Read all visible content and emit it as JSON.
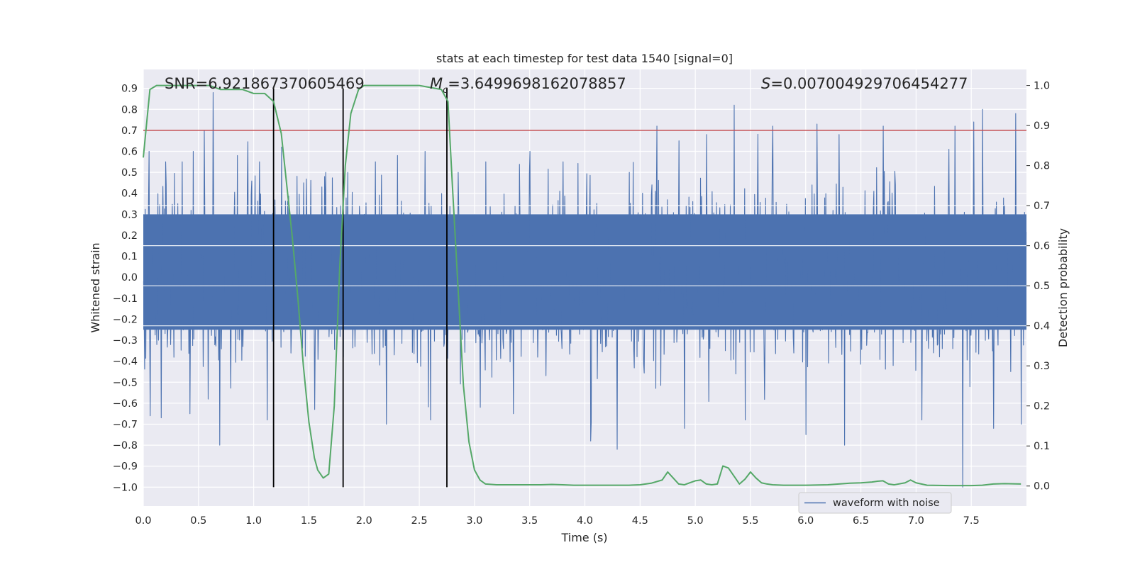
{
  "chart_data": {
    "type": "line",
    "title": "stats at each timestep for test data 1540 [signal=0]",
    "xlabel": "Time (s)",
    "ylabel_left": "Whitened strain",
    "ylabel_right": "Detection probability",
    "xlim": [
      0,
      8
    ],
    "ylim_left": [
      -1.09,
      0.99
    ],
    "ylim_right": [
      -0.05,
      1.04
    ],
    "x_ticks": [
      "0.0",
      "0.5",
      "1.0",
      "1.5",
      "2.0",
      "2.5",
      "3.0",
      "3.5",
      "4.0",
      "4.5",
      "5.0",
      "5.5",
      "6.0",
      "6.5",
      "7.0",
      "7.5"
    ],
    "y_ticks_left": [
      "0.9",
      "0.8",
      "0.7",
      "0.6",
      "0.5",
      "0.4",
      "0.3",
      "0.2",
      "0.1",
      "0.0",
      "−0.1",
      "−0.2",
      "−0.3",
      "−0.4",
      "−0.5",
      "−0.6",
      "−0.7",
      "−0.8",
      "−0.9",
      "−1.0"
    ],
    "y_ticks_right": [
      "1.0",
      "0.9",
      "0.8",
      "0.7",
      "0.6",
      "0.5",
      "0.4",
      "0.3",
      "0.2",
      "0.1",
      "0.0"
    ],
    "grid": true,
    "legend_position": "lower-right",
    "annotations": {
      "snr": "SNR=6.921867370605469",
      "mc_symbol": "M",
      "mc_sub": "c",
      "mc_value": "=3.6499698162078857",
      "s_symbol": "S",
      "s_value": "=0.007004929706454277"
    },
    "threshold_line": {
      "axis": "left",
      "y": 0.7,
      "color": "#c44e52"
    },
    "vertical_markers_x": [
      1.18,
      1.81,
      2.75
    ],
    "series": [
      {
        "name": "waveform with noise",
        "axis": "left",
        "color": "#4c72b0",
        "description_peaks": {
          "upper_spikes": [
            [
              0.05,
              0.6
            ],
            [
              0.2,
              0.55
            ],
            [
              0.35,
              0.55
            ],
            [
              0.45,
              0.6
            ],
            [
              0.55,
              0.7
            ],
            [
              0.63,
              0.88
            ],
            [
              0.85,
              0.58
            ],
            [
              1.05,
              0.55
            ],
            [
              1.25,
              0.62
            ],
            [
              1.45,
              0.45
            ],
            [
              1.65,
              0.5
            ],
            [
              1.85,
              0.5
            ],
            [
              2.1,
              0.55
            ],
            [
              2.3,
              0.58
            ],
            [
              2.55,
              0.6
            ],
            [
              2.85,
              0.5
            ],
            [
              3.1,
              0.55
            ],
            [
              3.5,
              0.6
            ],
            [
              3.8,
              0.55
            ],
            [
              4.05,
              0.57
            ],
            [
              4.4,
              0.5
            ],
            [
              4.65,
              0.72
            ],
            [
              4.85,
              0.65
            ],
            [
              5.1,
              0.68
            ],
            [
              5.35,
              0.82
            ],
            [
              5.45,
              0.7
            ],
            [
              5.7,
              0.72
            ],
            [
              6.1,
              0.73
            ],
            [
              6.3,
              0.68
            ],
            [
              6.7,
              0.72
            ],
            [
              7.05,
              0.72
            ],
            [
              7.35,
              0.72
            ],
            [
              7.52,
              0.74
            ],
            [
              7.6,
              0.8
            ],
            [
              7.9,
              0.78
            ]
          ],
          "lower_spikes": [
            [
              0.06,
              -0.66
            ],
            [
              0.16,
              -0.67
            ],
            [
              0.42,
              -0.65
            ],
            [
              0.69,
              -0.8
            ],
            [
              1.12,
              -0.68
            ],
            [
              1.55,
              -0.63
            ],
            [
              2.2,
              -0.7
            ],
            [
              2.6,
              -0.68
            ],
            [
              3.05,
              -0.62
            ],
            [
              3.35,
              -0.65
            ],
            [
              4.05,
              -0.78
            ],
            [
              4.29,
              -0.82
            ],
            [
              4.9,
              -0.72
            ],
            [
              5.45,
              -0.68
            ],
            [
              6.0,
              -0.75
            ],
            [
              6.35,
              -0.8
            ],
            [
              7.05,
              -0.68
            ],
            [
              7.42,
              -1.0
            ],
            [
              7.7,
              -0.72
            ],
            [
              7.95,
              -0.7
            ]
          ]
        }
      },
      {
        "name": "",
        "axis": "right",
        "color": "#55a868",
        "x": [
          0.0,
          0.06,
          0.12,
          0.2,
          0.3,
          0.4,
          0.5,
          0.6,
          0.7,
          0.8,
          0.9,
          1.0,
          1.1,
          1.18,
          1.25,
          1.3,
          1.35,
          1.4,
          1.45,
          1.5,
          1.55,
          1.58,
          1.63,
          1.68,
          1.73,
          1.78,
          1.83,
          1.88,
          1.95,
          2.0,
          2.1,
          2.3,
          2.5,
          2.7,
          2.76,
          2.8,
          2.85,
          2.9,
          2.95,
          3.0,
          3.05,
          3.1,
          3.2,
          3.3,
          3.4,
          3.5,
          3.6,
          3.7,
          3.8,
          3.9,
          4.0,
          4.2,
          4.4,
          4.5,
          4.6,
          4.7,
          4.75,
          4.8,
          4.85,
          4.9,
          4.95,
          5.0,
          5.05,
          5.1,
          5.15,
          5.2,
          5.25,
          5.3,
          5.35,
          5.4,
          5.45,
          5.5,
          5.55,
          5.6,
          5.65,
          5.7,
          5.8,
          6.0,
          6.2,
          6.4,
          6.5,
          6.6,
          6.65,
          6.7,
          6.75,
          6.8,
          6.9,
          6.95,
          7.0,
          7.1,
          7.3,
          7.5,
          7.6,
          7.7,
          7.8,
          7.95
        ],
        "values": [
          0.82,
          0.99,
          1.0,
          1.0,
          1.0,
          1.0,
          1.0,
          1.0,
          0.99,
          0.99,
          0.99,
          0.98,
          0.98,
          0.96,
          0.88,
          0.75,
          0.62,
          0.47,
          0.3,
          0.16,
          0.07,
          0.04,
          0.02,
          0.03,
          0.2,
          0.55,
          0.8,
          0.93,
          0.99,
          1.0,
          1.0,
          1.0,
          1.0,
          0.99,
          0.96,
          0.75,
          0.5,
          0.25,
          0.11,
          0.04,
          0.015,
          0.005,
          0.003,
          0.003,
          0.003,
          0.003,
          0.003,
          0.004,
          0.003,
          0.002,
          0.002,
          0.002,
          0.002,
          0.003,
          0.007,
          0.015,
          0.035,
          0.02,
          0.005,
          0.003,
          0.008,
          0.013,
          0.015,
          0.005,
          0.003,
          0.005,
          0.05,
          0.045,
          0.025,
          0.005,
          0.017,
          0.035,
          0.02,
          0.008,
          0.005,
          0.003,
          0.002,
          0.002,
          0.003,
          0.007,
          0.008,
          0.01,
          0.012,
          0.013,
          0.005,
          0.003,
          0.008,
          0.015,
          0.008,
          0.002,
          0.001,
          0.001,
          0.002,
          0.005,
          0.006,
          0.005
        ]
      }
    ]
  }
}
